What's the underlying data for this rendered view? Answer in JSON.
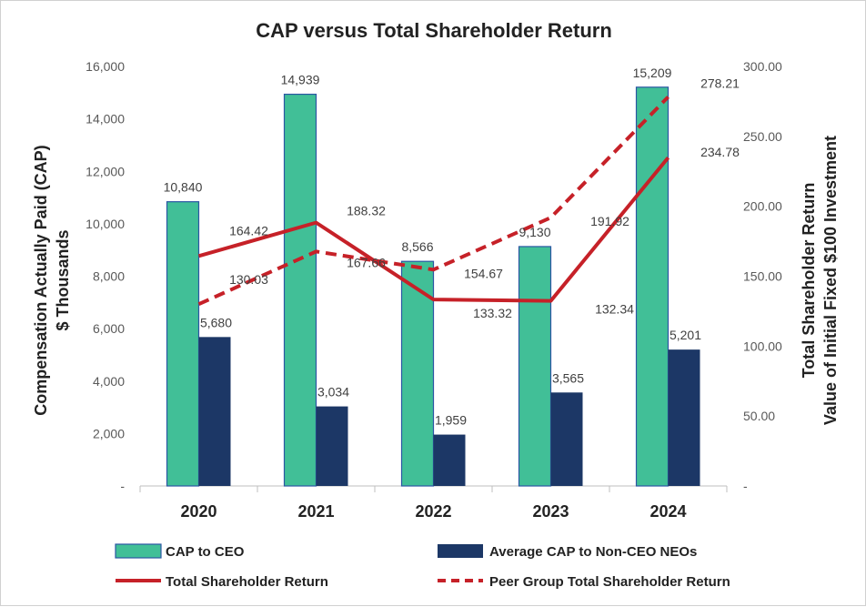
{
  "chart_data": {
    "type": "bar",
    "title": "CAP versus Total Shareholder Return",
    "categories": [
      "2020",
      "2021",
      "2022",
      "2023",
      "2024"
    ],
    "ylabel_left": [
      "Compensation Actually Paid (CAP)",
      "$ Thousands"
    ],
    "ylabel_right": [
      "Total Shareholder Return",
      "Value of Initial Fixed $100 Investment"
    ],
    "ylim_left": [
      0,
      16000
    ],
    "ylim_right": [
      0,
      300
    ],
    "yticks_left": [
      "-",
      "2,000",
      "4,000",
      "6,000",
      "8,000",
      "10,000",
      "12,000",
      "14,000",
      "16,000"
    ],
    "yticks_right": [
      "-",
      "50.00",
      "100.00",
      "150.00",
      "200.00",
      "250.00",
      "300.00"
    ],
    "grid": false,
    "legend_position": "bottom",
    "series": [
      {
        "name": "CAP to CEO",
        "type": "bar",
        "axis": "left",
        "color": "#41BF97",
        "border": "#2B56A3",
        "values": [
          10840,
          14939,
          8566,
          9130,
          15209
        ],
        "labels": [
          "10,840",
          "14,939",
          "8,566",
          "9,130",
          "15,209"
        ]
      },
      {
        "name": "Average CAP to Non-CEO NEOs",
        "type": "bar",
        "axis": "left",
        "color": "#1C3766",
        "values": [
          5680,
          3034,
          1959,
          3565,
          5201
        ],
        "labels": [
          "5,680",
          "3,034",
          "1,959",
          "3,565",
          "5,201"
        ]
      },
      {
        "name": "Total Shareholder Return",
        "type": "line",
        "axis": "right",
        "color": "#C62128",
        "dash": false,
        "values": [
          164.42,
          188.32,
          133.32,
          132.34,
          234.78
        ],
        "labels": [
          "164.42",
          "188.32",
          "133.32",
          "132.34",
          "234.78"
        ]
      },
      {
        "name": "Peer Group Total Shareholder Return",
        "type": "line",
        "axis": "right",
        "color": "#C62128",
        "dash": true,
        "values": [
          130.03,
          167.66,
          154.67,
          191.92,
          278.21
        ],
        "labels": [
          "130.03",
          "167.66",
          "154.67",
          "191.92",
          "278.21"
        ]
      }
    ]
  }
}
